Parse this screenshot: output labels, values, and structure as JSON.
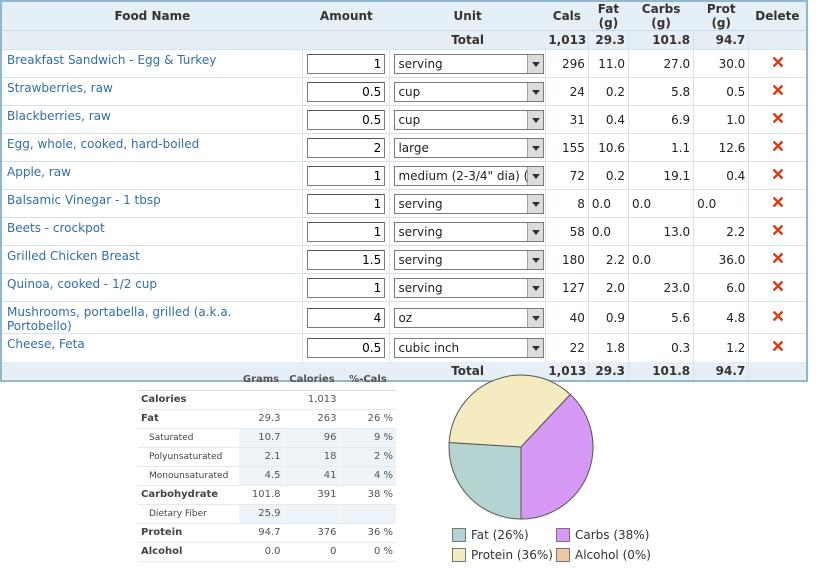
{
  "header": {
    "food_name": "Food Name",
    "amount": "Amount",
    "unit": "Unit",
    "cals": "Cals",
    "fat": "Fat (g)",
    "carbs": "Carbs (g)",
    "prot": "Prot (g)",
    "delete": "Delete"
  },
  "totals": {
    "label": "Total",
    "cals": "1,013",
    "fat": "29.3",
    "carbs": "101.8",
    "prot": "94.7"
  },
  "foods": [
    {
      "name": "Breakfast Sandwich - Egg & Turkey",
      "amount": "1",
      "unit": "serving",
      "cals": "296",
      "fat": "11.0",
      "carbs": "27.0",
      "prot": "30.0"
    },
    {
      "name": "Strawberries, raw",
      "amount": "0.5",
      "unit": "cup",
      "cals": "24",
      "fat": "0.2",
      "carbs": "5.8",
      "prot": "0.5"
    },
    {
      "name": "Blackberries, raw",
      "amount": "0.5",
      "unit": "cup",
      "cals": "31",
      "fat": "0.4",
      "carbs": "6.9",
      "prot": "1.0"
    },
    {
      "name": "Egg, whole, cooked, hard-boiled",
      "amount": "2",
      "unit": "large",
      "cals": "155",
      "fat": "10.6",
      "carbs": "1.1",
      "prot": "12.6"
    },
    {
      "name": "Apple, raw",
      "amount": "1",
      "unit": "medium (2-3/4\" dia) (a",
      "cals": "72",
      "fat": "0.2",
      "carbs": "19.1",
      "prot": "0.4"
    },
    {
      "name": "Balsamic Vinegar - 1 tbsp",
      "amount": "1",
      "unit": "serving",
      "cals": "8",
      "fat": "0.0",
      "carbs": "0.0",
      "prot": "0.0",
      "zero_style": true
    },
    {
      "name": "Beets - crockpot",
      "amount": "1",
      "unit": "serving",
      "cals": "58",
      "fat": "0.0",
      "carbs": "13.0",
      "prot": "2.2",
      "fat_left": true
    },
    {
      "name": "Grilled Chicken Breast",
      "amount": "1.5",
      "unit": "serving",
      "cals": "180",
      "fat": "2.2",
      "carbs": "0.0",
      "prot": "36.0",
      "carbs_left": true
    },
    {
      "name": "Quinoa, cooked - 1/2 cup",
      "amount": "1",
      "unit": "serving",
      "cals": "127",
      "fat": "2.0",
      "carbs": "23.0",
      "prot": "6.0"
    },
    {
      "name": "Mushrooms, portabella, grilled (a.k.a. Portobello)",
      "amount": "4",
      "unit": "oz",
      "cals": "40",
      "fat": "0.9",
      "carbs": "5.6",
      "prot": "4.8"
    },
    {
      "name": "Cheese, Feta",
      "amount": "0.5",
      "unit": "cubic inch",
      "cals": "22",
      "fat": "1.8",
      "carbs": "0.3",
      "prot": "1.2"
    }
  ],
  "nutrition": {
    "headers": {
      "grams": "Grams",
      "calories": "Calories",
      "pct": "%-Cals"
    },
    "rows": [
      {
        "label": "Calories",
        "grams": "",
        "calories": "1,013",
        "pct": "",
        "sub": false
      },
      {
        "label": "Fat",
        "grams": "29.3",
        "calories": "263",
        "pct": "26 %",
        "sub": false
      },
      {
        "label": "Saturated",
        "grams": "10.7",
        "calories": "96",
        "pct": "9 %",
        "sub": true
      },
      {
        "label": "Polyunsaturated",
        "grams": "2.1",
        "calories": "18",
        "pct": "2 %",
        "sub": true
      },
      {
        "label": "Monounsaturated",
        "grams": "4.5",
        "calories": "41",
        "pct": "4 %",
        "sub": true
      },
      {
        "label": "Carbohydrate",
        "grams": "101.8",
        "calories": "391",
        "pct": "38 %",
        "sub": false
      },
      {
        "label": "Dietary Fiber",
        "grams": "25.9",
        "calories": "",
        "pct": "",
        "sub": true
      },
      {
        "label": "Protein",
        "grams": "94.7",
        "calories": "376",
        "pct": "36 %",
        "sub": false
      },
      {
        "label": "Alcohol",
        "grams": "0.0",
        "calories": "0",
        "pct": "0 %",
        "sub": false
      }
    ]
  },
  "chart_data": {
    "type": "pie",
    "title": "",
    "categories": [
      "Fat",
      "Carbs",
      "Protein",
      "Alcohol"
    ],
    "values": [
      26,
      38,
      36,
      0
    ],
    "legend_labels": [
      "Fat (26%)",
      "Carbs (38%)",
      "Protein (36%)",
      "Alcohol (0%)"
    ],
    "colors": [
      "#b5d4d1",
      "#d699f5",
      "#f5ebc0",
      "#f0c8a0"
    ],
    "legend_placement": "bottom"
  },
  "colors": {
    "header_bg": "#e7eff6",
    "table_border": "#93b6cf",
    "link": "#336ea7",
    "delete_icon": "#e04a1a"
  },
  "icons": {
    "delete": "delete-x-icon",
    "dropdown": "chevron-down-icon"
  }
}
